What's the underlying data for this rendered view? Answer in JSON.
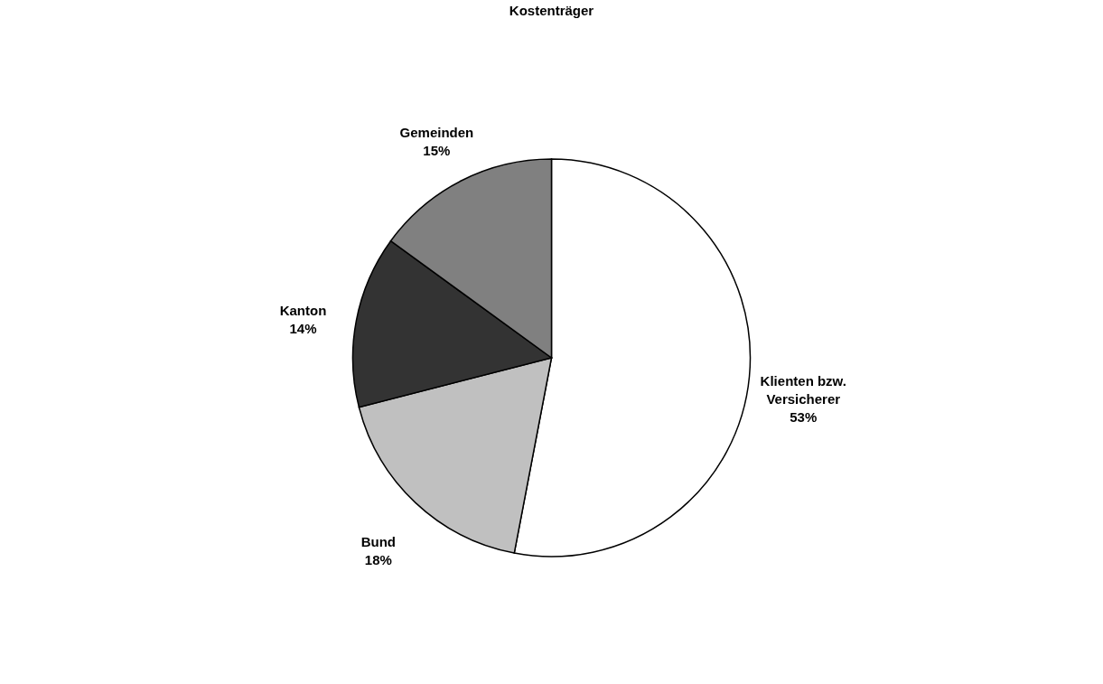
{
  "chart_data": {
    "type": "pie",
    "title": "Kostenträger",
    "categories": [
      "Klienten bzw. Versicherer",
      "Bund",
      "Kanton",
      "Gemeinden"
    ],
    "values": [
      53,
      18,
      14,
      15
    ],
    "colors": [
      "#ffffff",
      "#c0c0c0",
      "#333333",
      "#808080"
    ],
    "value_labels": [
      "53%",
      "18%",
      "14%",
      "15%"
    ],
    "legend": false
  }
}
